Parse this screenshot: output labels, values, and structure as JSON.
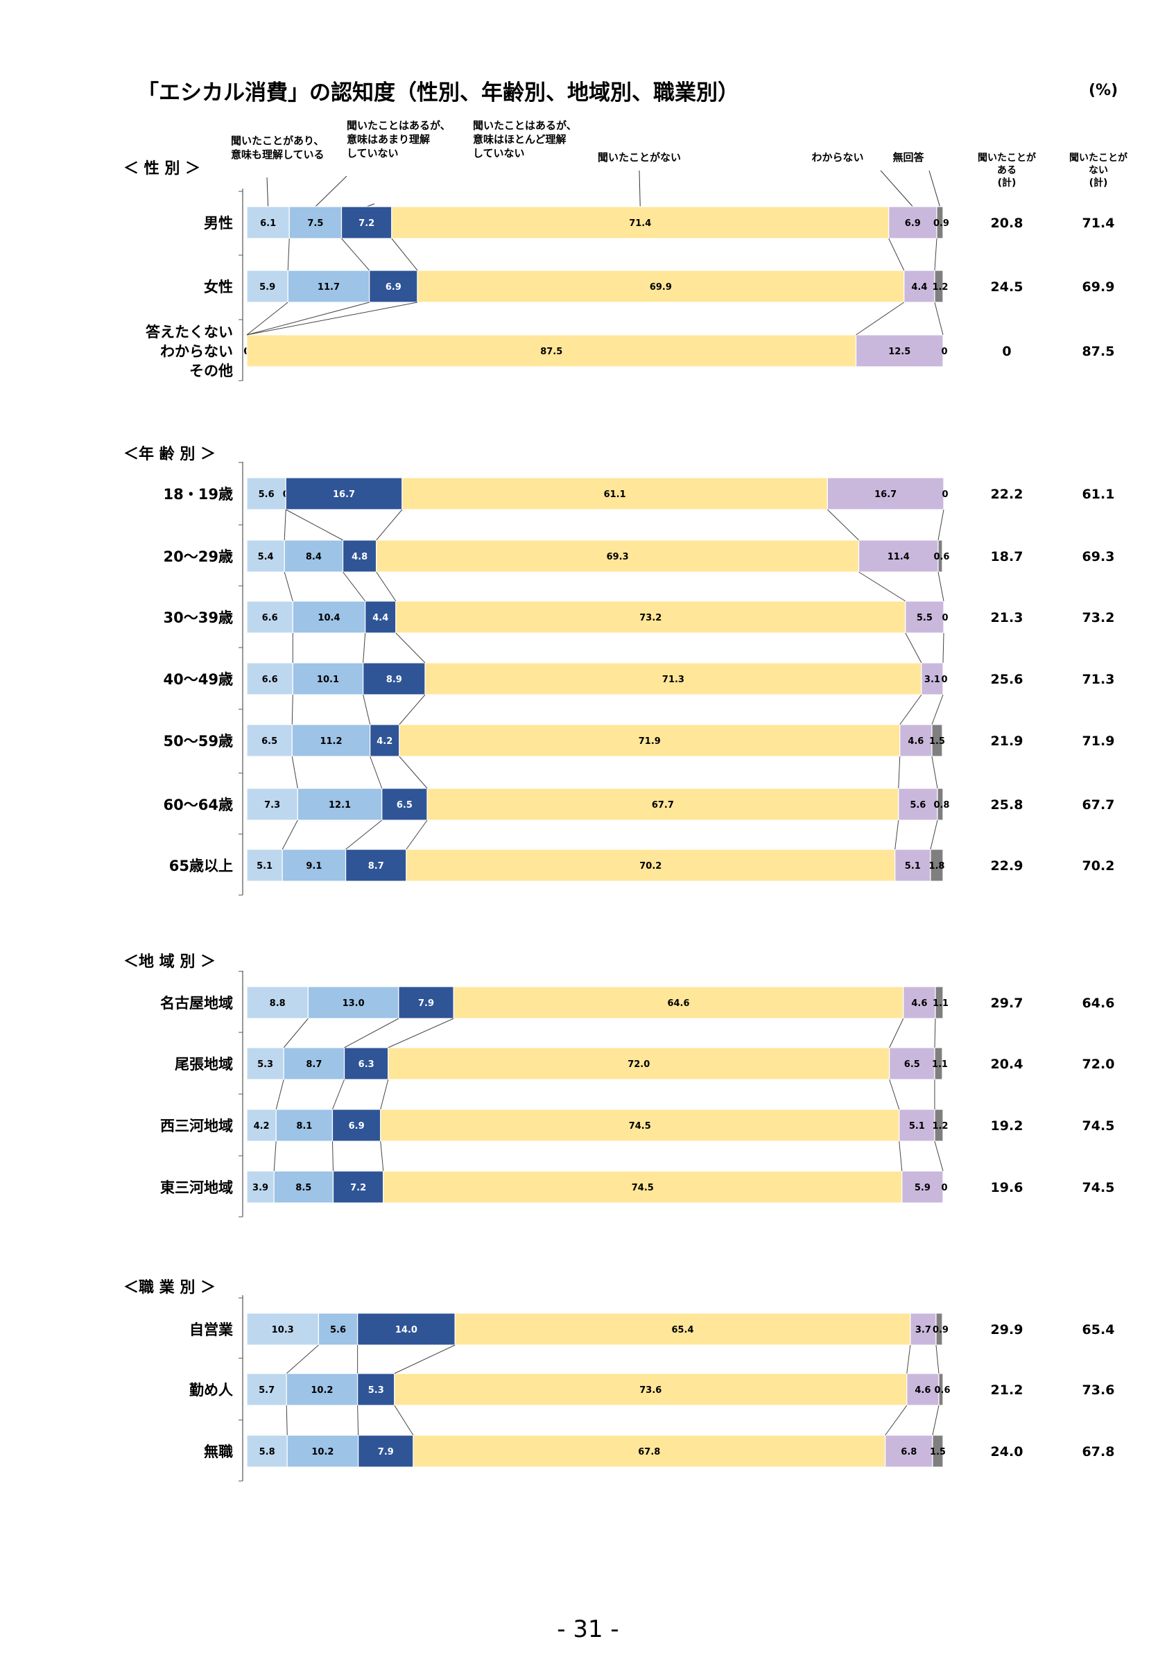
{
  "title": "「エシカル消費」の認知度（性別、年齢別、地域別、職業別）",
  "unit": "(%)",
  "page_number": "- 31 -",
  "chart_data": {
    "type": "bar",
    "stacked": "100%",
    "orientation": "horizontal",
    "legend": [
      {
        "name": "聞いたことがあり、\n意味も理解している",
        "color": "#bdd7ee"
      },
      {
        "name": "聞いたことはあるが、\n意味はあまり理解\nしていない",
        "color": "#9dc3e6"
      },
      {
        "name": "聞いたことはあるが、\n意味はほとんど理解\nしていない",
        "color": "#2f5597"
      },
      {
        "name": "聞いたことがない",
        "color": "#ffe699"
      },
      {
        "name": "わからない",
        "color": "#c9b8dc"
      },
      {
        "name": "無回答",
        "color": "#7f7f7f"
      }
    ],
    "totals_headers": [
      "聞いたことが\nある\n(計)",
      "聞いたことが\nない\n(計)"
    ],
    "groups": [
      {
        "label": "＜ 性 別 ＞",
        "rows": [
          {
            "label": "男性",
            "values": [
              6.1,
              7.5,
              7.2,
              71.4,
              6.9,
              0.9
            ],
            "value_labels": [
              "6.1",
              "7.5",
              "7.2",
              "71.4",
              "6.9",
              "0.9"
            ],
            "total_heard": "20.8",
            "total_not_heard": "71.4"
          },
          {
            "label": "女性",
            "values": [
              5.9,
              11.7,
              6.9,
              69.9,
              4.4,
              1.2
            ],
            "value_labels": [
              "5.9",
              "11.7",
              "6.9",
              "69.9",
              "4.4",
              "1.2"
            ],
            "total_heard": "24.5",
            "total_not_heard": "69.9"
          },
          {
            "label": "答えたくない\nわからない\nその他",
            "values": [
              0,
              0,
              0,
              87.5,
              12.5,
              0
            ],
            "value_labels": [
              "0",
              "0",
              "0",
              "87.5",
              "12.5",
              "0"
            ],
            "total_heard": "0",
            "total_not_heard": "87.5"
          }
        ]
      },
      {
        "label": "＜年 齢 別 ＞",
        "rows": [
          {
            "label": "18・19歳",
            "values": [
              5.6,
              0,
              16.7,
              61.1,
              16.7,
              0
            ],
            "value_labels": [
              "5.6",
              "0",
              "16.7",
              "61.1",
              "16.7",
              "0"
            ],
            "total_heard": "22.2",
            "total_not_heard": "61.1"
          },
          {
            "label": "20～29歳",
            "values": [
              5.4,
              8.4,
              4.8,
              69.3,
              11.4,
              0.6
            ],
            "value_labels": [
              "5.4",
              "8.4",
              "4.8",
              "69.3",
              "11.4",
              "0.6"
            ],
            "total_heard": "18.7",
            "total_not_heard": "69.3"
          },
          {
            "label": "30～39歳",
            "values": [
              6.6,
              10.4,
              4.4,
              73.2,
              5.5,
              0
            ],
            "value_labels": [
              "6.6",
              "10.4",
              "4.4",
              "73.2",
              "5.5",
              "0"
            ],
            "total_heard": "21.3",
            "total_not_heard": "73.2"
          },
          {
            "label": "40～49歳",
            "values": [
              6.6,
              10.1,
              8.9,
              71.3,
              3.1,
              0
            ],
            "value_labels": [
              "6.6",
              "10.1",
              "8.9",
              "71.3",
              "3.1",
              "0"
            ],
            "total_heard": "25.6",
            "total_not_heard": "71.3"
          },
          {
            "label": "50～59歳",
            "values": [
              6.5,
              11.2,
              4.2,
              71.9,
              4.6,
              1.5
            ],
            "value_labels": [
              "6.5",
              "11.2",
              "4.2",
              "71.9",
              "4.6",
              "1.5"
            ],
            "total_heard": "21.9",
            "total_not_heard": "71.9"
          },
          {
            "label": "60～64歳",
            "values": [
              7.3,
              12.1,
              6.5,
              67.7,
              5.6,
              0.8
            ],
            "value_labels": [
              "7.3",
              "12.1",
              "6.5",
              "67.7",
              "5.6",
              "0.8"
            ],
            "total_heard": "25.8",
            "total_not_heard": "67.7"
          },
          {
            "label": "65歳以上",
            "values": [
              5.1,
              9.1,
              8.7,
              70.2,
              5.1,
              1.8
            ],
            "value_labels": [
              "5.1",
              "9.1",
              "8.7",
              "70.2",
              "5.1",
              "1.8"
            ],
            "total_heard": "22.9",
            "total_not_heard": "70.2"
          }
        ]
      },
      {
        "label": "＜地 域 別 ＞",
        "rows": [
          {
            "label": "名古屋地域",
            "values": [
              8.8,
              13.0,
              7.9,
              64.6,
              4.6,
              1.1
            ],
            "value_labels": [
              "8.8",
              "13.0",
              "7.9",
              "64.6",
              "4.6",
              "1.1"
            ],
            "total_heard": "29.7",
            "total_not_heard": "64.6"
          },
          {
            "label": "尾張地域",
            "values": [
              5.3,
              8.7,
              6.3,
              72.0,
              6.5,
              1.1
            ],
            "value_labels": [
              "5.3",
              "8.7",
              "6.3",
              "72.0",
              "6.5",
              "1.1"
            ],
            "total_heard": "20.4",
            "total_not_heard": "72.0"
          },
          {
            "label": "西三河地域",
            "values": [
              4.2,
              8.1,
              6.9,
              74.5,
              5.1,
              1.2
            ],
            "value_labels": [
              "4.2",
              "8.1",
              "6.9",
              "74.5",
              "5.1",
              "1.2"
            ],
            "total_heard": "19.2",
            "total_not_heard": "74.5"
          },
          {
            "label": "東三河地域",
            "values": [
              3.9,
              8.5,
              7.2,
              74.5,
              5.9,
              0
            ],
            "value_labels": [
              "3.9",
              "8.5",
              "7.2",
              "74.5",
              "5.9",
              "0"
            ],
            "total_heard": "19.6",
            "total_not_heard": "74.5"
          }
        ]
      },
      {
        "label": "＜職 業 別 ＞",
        "rows": [
          {
            "label": "自営業",
            "values": [
              10.3,
              5.6,
              14.0,
              65.4,
              3.7,
              0.9
            ],
            "value_labels": [
              "10.3",
              "5.6",
              "14.0",
              "65.4",
              "3.7",
              "0.9"
            ],
            "total_heard": "29.9",
            "total_not_heard": "65.4"
          },
          {
            "label": "勤め人",
            "values": [
              5.7,
              10.2,
              5.3,
              73.6,
              4.6,
              0.6
            ],
            "value_labels": [
              "5.7",
              "10.2",
              "5.3",
              "73.6",
              "4.6",
              "0.6"
            ],
            "total_heard": "21.2",
            "total_not_heard": "73.6"
          },
          {
            "label": "無職",
            "values": [
              5.8,
              10.2,
              7.9,
              67.8,
              6.8,
              1.5
            ],
            "value_labels": [
              "5.8",
              "10.2",
              "7.9",
              "67.8",
              "6.8",
              "1.5"
            ],
            "total_heard": "24.0",
            "total_not_heard": "67.8"
          }
        ]
      }
    ]
  }
}
